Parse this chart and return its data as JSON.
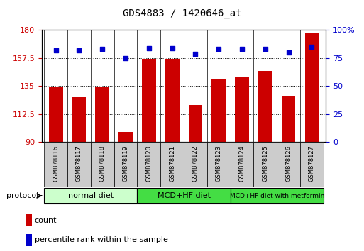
{
  "title": "GDS4883 / 1420646_at",
  "samples": [
    "GSM878116",
    "GSM878117",
    "GSM878118",
    "GSM878119",
    "GSM878120",
    "GSM878121",
    "GSM878122",
    "GSM878123",
    "GSM878124",
    "GSM878125",
    "GSM878126",
    "GSM878127"
  ],
  "counts": [
    134,
    126,
    134,
    98,
    157,
    157,
    120,
    140,
    142,
    147,
    127,
    178
  ],
  "percentiles": [
    82,
    82,
    83,
    75,
    84,
    84,
    79,
    83,
    83,
    83,
    80,
    85
  ],
  "ylim_left": [
    90,
    180
  ],
  "ylim_right": [
    0,
    100
  ],
  "yticks_left": [
    90,
    112.5,
    135,
    157.5,
    180
  ],
  "yticks_right": [
    0,
    25,
    50,
    75,
    100
  ],
  "gridlines": [
    112.5,
    135,
    157.5
  ],
  "bar_color": "#cc0000",
  "dot_color": "#0000cc",
  "bar_width": 0.6,
  "group_defs": [
    {
      "label": "normal diet",
      "start": 0,
      "end": 3,
      "color": "#ccffcc"
    },
    {
      "label": "MCD+HF diet",
      "start": 4,
      "end": 7,
      "color": "#44dd44"
    },
    {
      "label": "MCD+HF diet with metformin",
      "start": 8,
      "end": 11,
      "color": "#44dd44"
    }
  ],
  "protocol_label": "protocol",
  "legend_count_label": "count",
  "legend_percentile_label": "percentile rank within the sample",
  "bg_color": "#ffffff",
  "tick_color_left": "#cc0000",
  "tick_color_right": "#0000cc",
  "sample_box_color": "#cccccc",
  "title_fontsize": 10,
  "axis_fontsize": 8,
  "sample_fontsize": 6,
  "legend_fontsize": 8
}
